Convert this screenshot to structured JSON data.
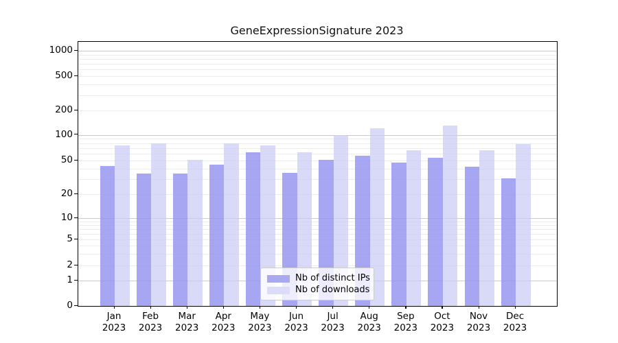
{
  "chart_data": {
    "type": "bar",
    "title": "GeneExpressionSignature 2023",
    "year_label": "2023",
    "categories": [
      "Jan",
      "Feb",
      "Mar",
      "Apr",
      "May",
      "Jun",
      "Jul",
      "Aug",
      "Sep",
      "Oct",
      "Nov",
      "Dec"
    ],
    "series": [
      {
        "name": "Nb of distinct IPs",
        "color": "rgba(146,146,240,0.82)",
        "legend_color": "#a9a9f0",
        "values": [
          43,
          35,
          35,
          45,
          62,
          36,
          51,
          57,
          47,
          54,
          42,
          31
        ]
      },
      {
        "name": "Nb of downloads",
        "color": "rgba(202,202,245,0.72)",
        "legend_color": "#dcdcf8",
        "values": [
          75,
          80,
          51,
          80,
          75,
          62,
          100,
          120,
          66,
          130,
          66,
          78
        ]
      }
    ],
    "yaxis": {
      "scale": "symlog",
      "tick_values": [
        0,
        1,
        2,
        5,
        10,
        20,
        50,
        100,
        200,
        500,
        1000
      ],
      "minor_grid_values": [
        2,
        3,
        4,
        5,
        6,
        7,
        8,
        9,
        20,
        30,
        40,
        50,
        60,
        70,
        80,
        90,
        200,
        300,
        400,
        500,
        600,
        700,
        800,
        900
      ],
      "major_grid_values": [
        1,
        10,
        100,
        1000
      ]
    },
    "grid": {
      "on": true,
      "major_color": "#c9c9c9",
      "minor_color": "#ececec"
    },
    "legend": {
      "position": "lower-center-inside"
    }
  }
}
